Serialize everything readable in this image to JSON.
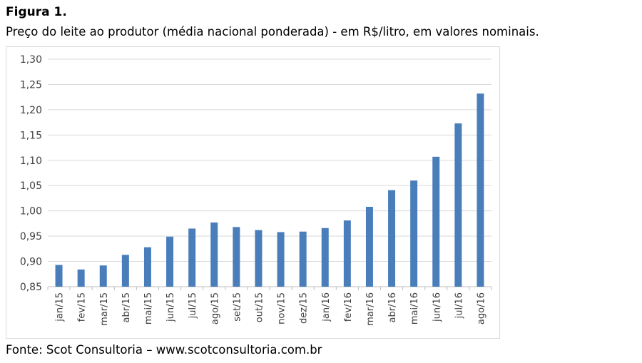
{
  "figure_label": "Figura 1.",
  "figure_title": "Preço do leite ao produtor (média nacional ponderada) - em R$/litro, em valores nominais.",
  "source": "Fonte: Scot Consultoria – www.scotconsultoria.com.br",
  "chart_data": {
    "type": "bar",
    "categories": [
      "jan/15",
      "fev/15",
      "mar/15",
      "abr/15",
      "mai/15",
      "jun/15",
      "jul/15",
      "ago/15",
      "set/15",
      "out/15",
      "nov/15",
      "dez/15",
      "jan/16",
      "fev/16",
      "mar/16",
      "abr/16",
      "mai/16",
      "jun/16",
      "jul/16",
      "ago/16"
    ],
    "values": [
      0.893,
      0.884,
      0.892,
      0.913,
      0.928,
      0.949,
      0.965,
      0.977,
      0.968,
      0.962,
      0.958,
      0.959,
      0.966,
      0.981,
      1.008,
      1.041,
      1.06,
      1.107,
      1.173,
      1.232
    ],
    "yticks": [
      "0,85",
      "0,90",
      "0,95",
      "1,00",
      "1,05",
      "1,10",
      "1,15",
      "1,20",
      "1,25",
      "1,30"
    ],
    "ylim": [
      0.85,
      1.3
    ],
    "grid": true,
    "legend": "none",
    "bar_color": "#4a7ebb"
  }
}
